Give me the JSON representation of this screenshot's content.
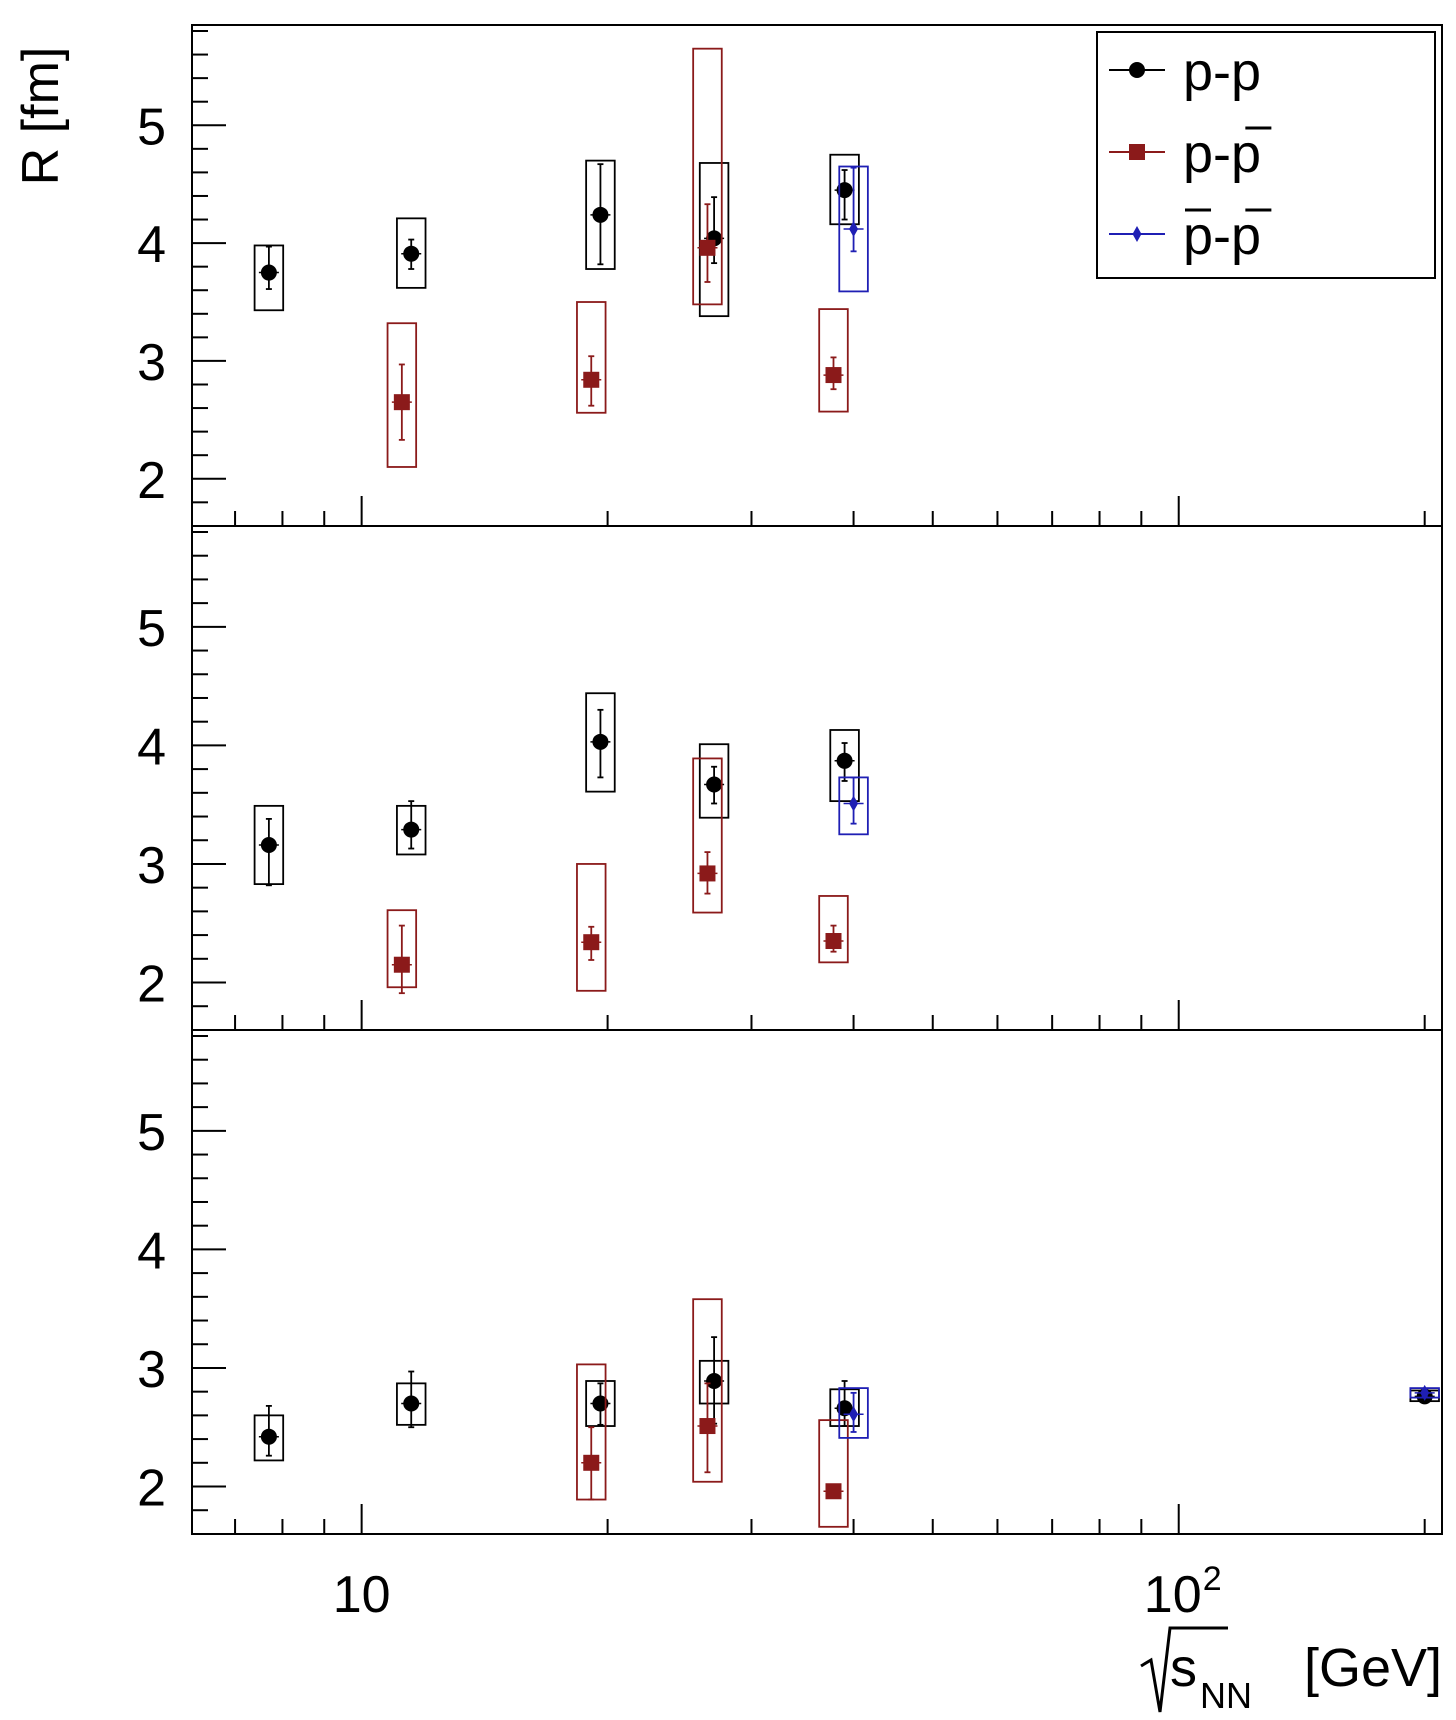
{
  "chart_data": {
    "type": "scatter",
    "ylabel": "R [fm]",
    "xlabel_radicand": "s",
    "xlabel_subscript": "NN",
    "xlabel_unit": "[GeV]",
    "x_scale": "log",
    "xlim": [
      6.2,
      210
    ],
    "ylim": [
      1.65,
      5.8
    ],
    "x_tick_labels": [
      {
        "x": 10,
        "base": "10",
        "exp": ""
      },
      {
        "x": 100,
        "base": "10",
        "exp": "2"
      }
    ],
    "y_tick_labels": [
      "2",
      "3",
      "4",
      "5"
    ],
    "legend": {
      "position": "top-right",
      "entries": [
        {
          "key": "pp",
          "base": "p-p",
          "bars": []
        },
        {
          "key": "ppbar",
          "base": "p-p",
          "bars": [
            2
          ]
        },
        {
          "key": "pbarpbar",
          "base": "p-p",
          "bars": [
            0,
            2
          ]
        }
      ]
    },
    "series_style": {
      "pp": {
        "color": "#000000",
        "marker": "circle"
      },
      "ppbar": {
        "color": "#8b1a1a",
        "marker": "square"
      },
      "pbarpbar": {
        "color": "#1f1fb4",
        "marker": "diamond"
      }
    },
    "panels": [
      {
        "points": [
          {
            "series": "pp",
            "x": 7.7,
            "y": 3.75,
            "stat": [
              3.61,
              3.97
            ],
            "sys": [
              3.43,
              3.98
            ],
            "bw": 0.035
          },
          {
            "series": "pp",
            "x": 11.5,
            "y": 3.91,
            "stat": [
              3.78,
              4.03
            ],
            "sys": [
              3.62,
              4.21
            ],
            "bw": 0.035
          },
          {
            "series": "pp",
            "x": 19.6,
            "y": 4.24,
            "stat": [
              3.82,
              4.67
            ],
            "sys": [
              3.78,
              4.7
            ],
            "bw": 0.035
          },
          {
            "series": "pp",
            "x": 27.0,
            "y": 4.04,
            "stat": [
              3.83,
              4.39
            ],
            "sys": [
              3.38,
              4.68
            ],
            "bw": 0.035
          },
          {
            "series": "pp",
            "x": 39.0,
            "y": 4.45,
            "stat": [
              4.2,
              4.62
            ],
            "sys": [
              4.16,
              4.75
            ],
            "bw": 0.035
          },
          {
            "series": "ppbar",
            "x": 11.2,
            "y": 2.65,
            "stat": [
              2.33,
              2.97
            ],
            "sys": [
              2.1,
              3.32
            ],
            "bw": 0.035
          },
          {
            "series": "ppbar",
            "x": 19.1,
            "y": 2.84,
            "stat": [
              2.62,
              3.04
            ],
            "sys": [
              2.56,
              3.5
            ],
            "bw": 0.035
          },
          {
            "series": "ppbar",
            "x": 26.5,
            "y": 3.96,
            "stat": [
              3.67,
              4.33
            ],
            "sys": [
              3.48,
              5.65
            ],
            "bw": 0.035
          },
          {
            "series": "ppbar",
            "x": 37.8,
            "y": 2.88,
            "stat": [
              2.76,
              3.03
            ],
            "sys": [
              2.57,
              3.44
            ],
            "bw": 0.035
          },
          {
            "series": "pbarpbar",
            "x": 40.0,
            "y": 4.12,
            "stat": [
              3.93,
              4.64
            ],
            "sys": [
              3.59,
              4.65
            ],
            "bw": 0.035
          }
        ]
      },
      {
        "points": [
          {
            "series": "pp",
            "x": 7.7,
            "y": 3.16,
            "stat": [
              2.82,
              3.38
            ],
            "sys": [
              2.83,
              3.49
            ],
            "bw": 0.035
          },
          {
            "series": "pp",
            "x": 11.5,
            "y": 3.29,
            "stat": [
              3.13,
              3.53
            ],
            "sys": [
              3.08,
              3.49
            ],
            "bw": 0.035
          },
          {
            "series": "pp",
            "x": 19.6,
            "y": 4.03,
            "stat": [
              3.73,
              4.3
            ],
            "sys": [
              3.61,
              4.44
            ],
            "bw": 0.035
          },
          {
            "series": "pp",
            "x": 27.0,
            "y": 3.67,
            "stat": [
              3.51,
              3.82
            ],
            "sys": [
              3.39,
              4.01
            ],
            "bw": 0.035
          },
          {
            "series": "pp",
            "x": 39.0,
            "y": 3.87,
            "stat": [
              3.7,
              4.02
            ],
            "sys": [
              3.53,
              4.13
            ],
            "bw": 0.035
          },
          {
            "series": "ppbar",
            "x": 11.2,
            "y": 2.15,
            "stat": [
              1.91,
              2.48
            ],
            "sys": [
              1.96,
              2.61
            ],
            "bw": 0.035
          },
          {
            "series": "ppbar",
            "x": 19.1,
            "y": 2.34,
            "stat": [
              2.19,
              2.47
            ],
            "sys": [
              1.93,
              3.0
            ],
            "bw": 0.035
          },
          {
            "series": "ppbar",
            "x": 26.5,
            "y": 2.92,
            "stat": [
              2.75,
              3.1
            ],
            "sys": [
              2.59,
              3.89
            ],
            "bw": 0.035
          },
          {
            "series": "ppbar",
            "x": 37.8,
            "y": 2.35,
            "stat": [
              2.26,
              2.48
            ],
            "sys": [
              2.17,
              2.73
            ],
            "bw": 0.035
          },
          {
            "series": "pbarpbar",
            "x": 40.0,
            "y": 3.51,
            "stat": [
              3.34,
              3.73
            ],
            "sys": [
              3.25,
              3.73
            ],
            "bw": 0.035
          }
        ]
      },
      {
        "points": [
          {
            "series": "pp",
            "x": 7.7,
            "y": 2.42,
            "stat": [
              2.26,
              2.68
            ],
            "sys": [
              2.22,
              2.6
            ],
            "bw": 0.035
          },
          {
            "series": "pp",
            "x": 11.5,
            "y": 2.7,
            "stat": [
              2.5,
              2.97
            ],
            "sys": [
              2.52,
              2.87
            ],
            "bw": 0.035
          },
          {
            "series": "pp",
            "x": 19.6,
            "y": 2.7,
            "stat": [
              2.52,
              2.87
            ],
            "sys": [
              2.51,
              2.89
            ],
            "bw": 0.035
          },
          {
            "series": "pp",
            "x": 27.0,
            "y": 2.89,
            "stat": [
              2.53,
              3.26
            ],
            "sys": [
              2.7,
              3.06
            ],
            "bw": 0.035
          },
          {
            "series": "pp",
            "x": 39.0,
            "y": 2.66,
            "stat": [
              2.51,
              2.89
            ],
            "sys": [
              2.51,
              2.82
            ],
            "bw": 0.035
          },
          {
            "series": "pp",
            "x": 200.0,
            "y": 2.76,
            "stat": [
              2.73,
              2.79
            ],
            "sys": [
              2.72,
              2.81
            ],
            "bw": 0.035
          },
          {
            "series": "ppbar",
            "x": 19.1,
            "y": 2.2,
            "stat": [
              1.89,
              2.5
            ],
            "sys": [
              1.89,
              3.03
            ],
            "bw": 0.035
          },
          {
            "series": "ppbar",
            "x": 26.5,
            "y": 2.51,
            "stat": [
              2.12,
              2.87
            ],
            "sys": [
              2.04,
              3.58
            ],
            "bw": 0.035
          },
          {
            "series": "ppbar",
            "x": 37.8,
            "y": 1.96,
            "stat": [
              1.92,
              2.0
            ],
            "sys": [
              1.66,
              2.56
            ],
            "bw": 0.035
          },
          {
            "series": "pbarpbar",
            "x": 40.0,
            "y": 2.61,
            "stat": [
              2.46,
              2.79
            ],
            "sys": [
              2.41,
              2.83
            ],
            "bw": 0.035
          },
          {
            "series": "pbarpbar",
            "x": 200.0,
            "y": 2.79,
            "stat": [
              2.76,
              2.82
            ],
            "sys": [
              2.75,
              2.83
            ],
            "bw": 0.035
          }
        ]
      }
    ]
  }
}
